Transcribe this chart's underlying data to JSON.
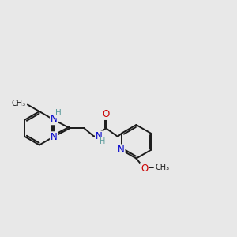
{
  "background_color": "#e8e8e8",
  "bond_color": "#1a1a1a",
  "bond_width": 1.4,
  "atom_colors": {
    "C": "#1a1a1a",
    "N": "#0000cc",
    "O": "#cc0000",
    "H": "#5a9a9a"
  },
  "font_size": 8.5,
  "fig_width": 3.0,
  "fig_height": 3.0,
  "dpi": 100
}
